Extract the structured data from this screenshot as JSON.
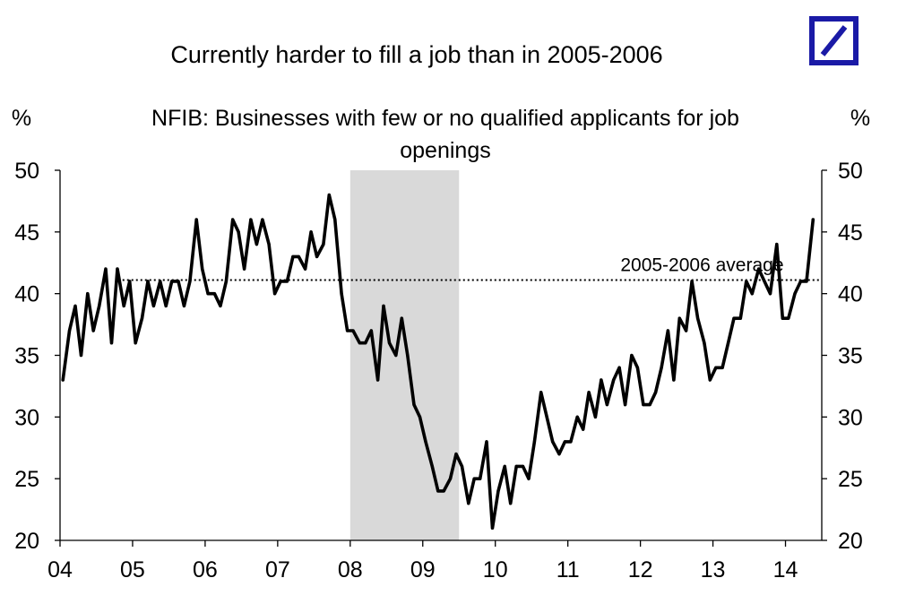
{
  "chart_data": {
    "type": "line",
    "title": "Currently harder to fill a job than in 2005-2006",
    "subtitle": "NFIB: Businesses with few or no qualified applicants for job openings",
    "subtitle_lines": [
      "NFIB: Businesses with few or no qualified applicants for job",
      "openings"
    ],
    "ylabel_left": "%",
    "ylabel_right": "%",
    "ylim": [
      20,
      50
    ],
    "yticks": [
      "20",
      "25",
      "30",
      "35",
      "40",
      "45",
      "50"
    ],
    "xlim": [
      2004.0,
      2014.5
    ],
    "xticks": [
      {
        "x": 2004,
        "label": "04"
      },
      {
        "x": 2005,
        "label": "05"
      },
      {
        "x": 2006,
        "label": "06"
      },
      {
        "x": 2007,
        "label": "07"
      },
      {
        "x": 2008,
        "label": "08"
      },
      {
        "x": 2009,
        "label": "09"
      },
      {
        "x": 2010,
        "label": "10"
      },
      {
        "x": 2011,
        "label": "11"
      },
      {
        "x": 2012,
        "label": "12"
      },
      {
        "x": 2013,
        "label": "13"
      },
      {
        "x": 2014,
        "label": "14"
      }
    ],
    "shaded_region": [
      2008.0,
      2009.5
    ],
    "reference_line": {
      "label": "2005-2006 average",
      "y": 41.1
    },
    "series": [
      {
        "color": "#000000",
        "points": [
          [
            2004.04,
            33
          ],
          [
            2004.13,
            37
          ],
          [
            2004.21,
            39
          ],
          [
            2004.29,
            35
          ],
          [
            2004.38,
            40
          ],
          [
            2004.46,
            37
          ],
          [
            2004.54,
            39
          ],
          [
            2004.63,
            42
          ],
          [
            2004.71,
            36
          ],
          [
            2004.79,
            42
          ],
          [
            2004.88,
            39
          ],
          [
            2004.96,
            41
          ],
          [
            2005.04,
            36
          ],
          [
            2005.13,
            38
          ],
          [
            2005.21,
            41
          ],
          [
            2005.29,
            39
          ],
          [
            2005.38,
            41
          ],
          [
            2005.46,
            39
          ],
          [
            2005.54,
            41
          ],
          [
            2005.63,
            41
          ],
          [
            2005.71,
            39
          ],
          [
            2005.79,
            41
          ],
          [
            2005.88,
            46
          ],
          [
            2005.96,
            42
          ],
          [
            2006.04,
            40
          ],
          [
            2006.13,
            40
          ],
          [
            2006.21,
            39
          ],
          [
            2006.29,
            41
          ],
          [
            2006.38,
            46
          ],
          [
            2006.46,
            45
          ],
          [
            2006.54,
            42
          ],
          [
            2006.63,
            46
          ],
          [
            2006.71,
            44
          ],
          [
            2006.79,
            46
          ],
          [
            2006.88,
            44
          ],
          [
            2006.96,
            40
          ],
          [
            2007.04,
            41
          ],
          [
            2007.13,
            41
          ],
          [
            2007.21,
            43
          ],
          [
            2007.29,
            43
          ],
          [
            2007.38,
            42
          ],
          [
            2007.46,
            45
          ],
          [
            2007.54,
            43
          ],
          [
            2007.63,
            44
          ],
          [
            2007.71,
            48
          ],
          [
            2007.79,
            46
          ],
          [
            2007.88,
            40
          ],
          [
            2007.96,
            37
          ],
          [
            2008.04,
            37
          ],
          [
            2008.13,
            36
          ],
          [
            2008.21,
            36
          ],
          [
            2008.29,
            37
          ],
          [
            2008.38,
            33
          ],
          [
            2008.46,
            39
          ],
          [
            2008.54,
            36
          ],
          [
            2008.63,
            35
          ],
          [
            2008.71,
            38
          ],
          [
            2008.79,
            35
          ],
          [
            2008.88,
            31
          ],
          [
            2008.96,
            30
          ],
          [
            2009.04,
            28
          ],
          [
            2009.13,
            26
          ],
          [
            2009.21,
            24
          ],
          [
            2009.29,
            24
          ],
          [
            2009.38,
            25
          ],
          [
            2009.46,
            27
          ],
          [
            2009.54,
            26
          ],
          [
            2009.63,
            23
          ],
          [
            2009.71,
            25
          ],
          [
            2009.79,
            25
          ],
          [
            2009.88,
            28
          ],
          [
            2009.96,
            21
          ],
          [
            2010.04,
            24
          ],
          [
            2010.13,
            26
          ],
          [
            2010.21,
            23
          ],
          [
            2010.29,
            26
          ],
          [
            2010.38,
            26
          ],
          [
            2010.46,
            25
          ],
          [
            2010.54,
            28
          ],
          [
            2010.63,
            32
          ],
          [
            2010.71,
            30
          ],
          [
            2010.79,
            28
          ],
          [
            2010.88,
            27
          ],
          [
            2010.96,
            28
          ],
          [
            2011.04,
            28
          ],
          [
            2011.13,
            30
          ],
          [
            2011.21,
            29
          ],
          [
            2011.29,
            32
          ],
          [
            2011.38,
            30
          ],
          [
            2011.46,
            33
          ],
          [
            2011.54,
            31
          ],
          [
            2011.63,
            33
          ],
          [
            2011.71,
            34
          ],
          [
            2011.79,
            31
          ],
          [
            2011.88,
            35
          ],
          [
            2011.96,
            34
          ],
          [
            2012.04,
            31
          ],
          [
            2012.13,
            31
          ],
          [
            2012.21,
            32
          ],
          [
            2012.29,
            34
          ],
          [
            2012.38,
            37
          ],
          [
            2012.46,
            33
          ],
          [
            2012.54,
            38
          ],
          [
            2012.63,
            37
          ],
          [
            2012.71,
            41
          ],
          [
            2012.79,
            38
          ],
          [
            2012.88,
            36
          ],
          [
            2012.96,
            33
          ],
          [
            2013.04,
            34
          ],
          [
            2013.13,
            34
          ],
          [
            2013.21,
            36
          ],
          [
            2013.29,
            38
          ],
          [
            2013.38,
            38
          ],
          [
            2013.46,
            41
          ],
          [
            2013.54,
            40
          ],
          [
            2013.63,
            42
          ],
          [
            2013.71,
            41
          ],
          [
            2013.79,
            40
          ],
          [
            2013.88,
            44
          ],
          [
            2013.96,
            38
          ],
          [
            2014.04,
            38
          ],
          [
            2014.13,
            40
          ],
          [
            2014.21,
            41
          ],
          [
            2014.29,
            41
          ],
          [
            2014.38,
            46
          ]
        ]
      }
    ],
    "grid": false,
    "legend": "none"
  },
  "colors": {
    "line": "#000000",
    "shade": "#d9d9d9",
    "logo": "#1a1aa6"
  },
  "logo": {
    "icon": "deutsche-bank-logo"
  }
}
